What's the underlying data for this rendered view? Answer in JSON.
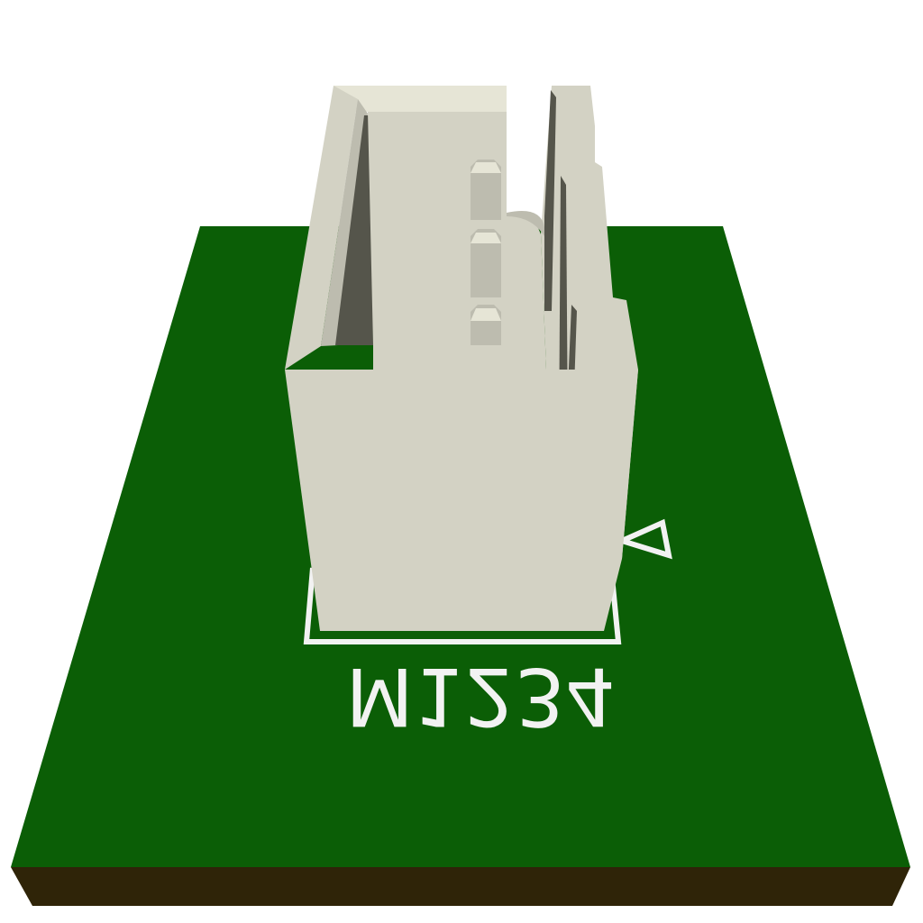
{
  "board": {
    "silkscreen_label": "M1234",
    "colors": {
      "board_top": "#0b5e06",
      "board_edge": "#2f2408",
      "silkscreen": "#f2f2f2",
      "housing_light": "#d3d2c4",
      "housing_mid": "#bdbcaf",
      "housing_dark": "#55554b",
      "housing_highlight": "#e6e5d6"
    }
  }
}
